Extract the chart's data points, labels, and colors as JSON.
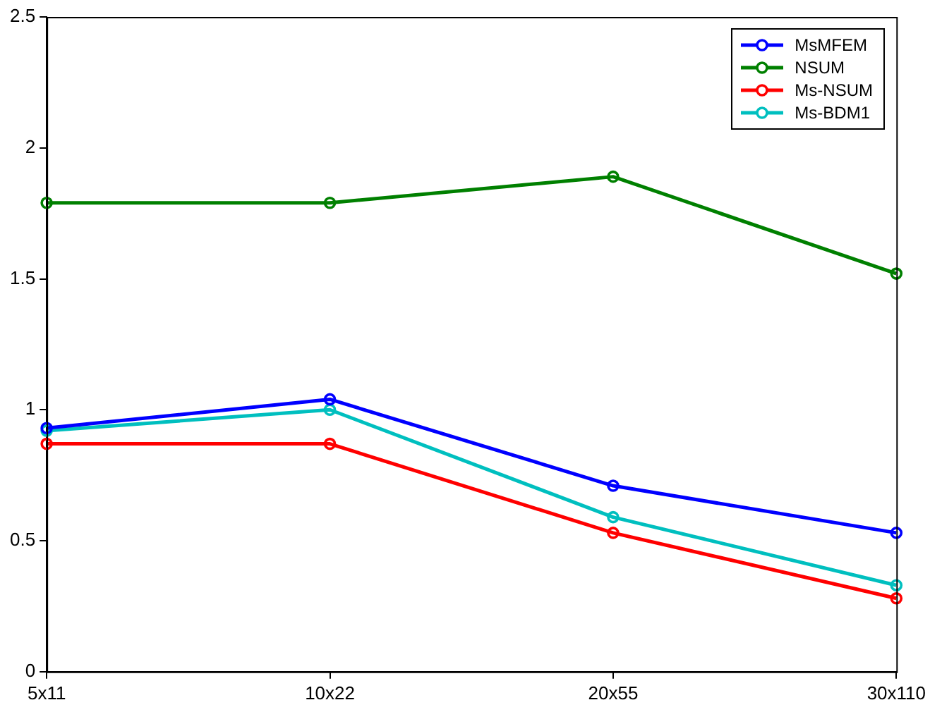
{
  "chart_data": {
    "type": "line",
    "categories": [
      "5x11",
      "10x22",
      "20x55",
      "30x110"
    ],
    "series": [
      {
        "name": "MsMFEM",
        "color": "#0000ff",
        "values": [
          0.93,
          1.04,
          0.71,
          0.53
        ]
      },
      {
        "name": "NSUM",
        "color": "#008000",
        "values": [
          1.79,
          1.79,
          1.89,
          1.52
        ]
      },
      {
        "name": "Ms-NSUM",
        "color": "#ff0000",
        "values": [
          0.87,
          0.87,
          0.53,
          0.28
        ]
      },
      {
        "name": "Ms-BDM1",
        "color": "#00bfbf",
        "values": [
          0.92,
          1.0,
          0.59,
          0.33
        ]
      }
    ],
    "ylim": [
      0,
      2.5
    ],
    "yticks": [
      0,
      0.5,
      1,
      1.5,
      2,
      2.5
    ],
    "grid": false,
    "legend": "top right",
    "marker": "circle",
    "line_style": "solid"
  }
}
